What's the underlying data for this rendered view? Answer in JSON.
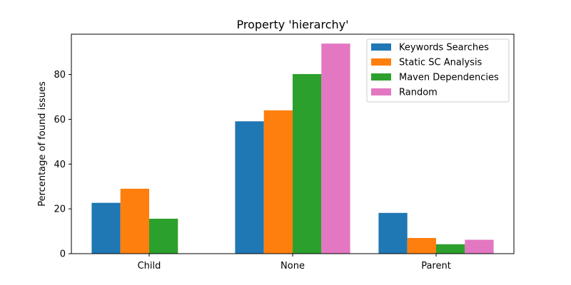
{
  "chart_data": {
    "type": "bar",
    "title": "Property 'hierarchy'",
    "xlabel": "",
    "ylabel": "Percentage of found issues",
    "categories": [
      "Child",
      "None",
      "Parent"
    ],
    "ylim": [
      0,
      98
    ],
    "yticks": [
      0,
      20,
      40,
      60,
      80
    ],
    "grid": false,
    "legend_position": "top-right",
    "series": [
      {
        "name": "Keywords Searches",
        "color": "#1f77b4",
        "values": [
          22.7,
          59.1,
          18.2
        ]
      },
      {
        "name": "Static SC Analysis",
        "color": "#ff7f0e",
        "values": [
          29.0,
          64.0,
          7.0
        ]
      },
      {
        "name": "Maven Dependencies",
        "color": "#2ca02c",
        "values": [
          15.6,
          80.2,
          4.2
        ]
      },
      {
        "name": "Random",
        "color": "#e377c2",
        "values": [
          0,
          93.8,
          6.2
        ]
      }
    ]
  }
}
